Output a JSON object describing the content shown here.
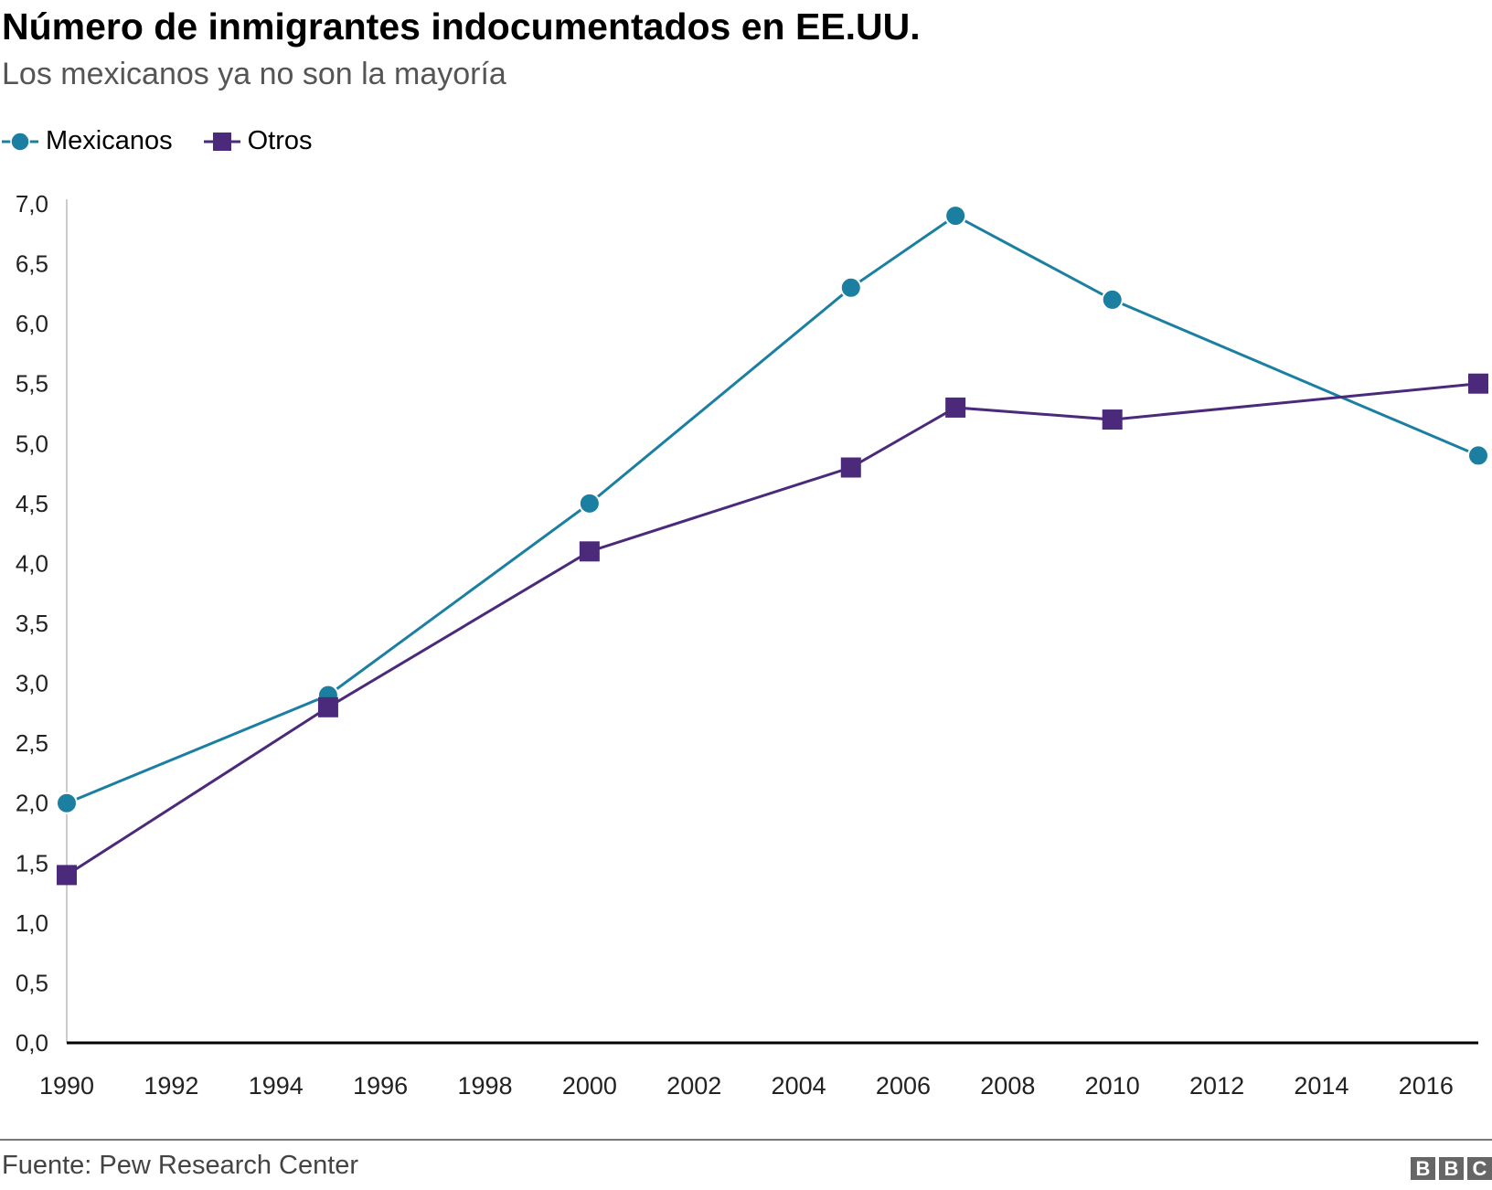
{
  "chart_data": {
    "type": "line",
    "title": "Número de inmigrantes indocumentados en EE.UU.",
    "subtitle": "Los mexicanos ya no son la mayoría",
    "x": [
      1990,
      1995,
      2000,
      2005,
      2007,
      2010,
      2017
    ],
    "xlim": [
      1990,
      2017
    ],
    "ylim": [
      0,
      7
    ],
    "x_ticks": [
      "1990",
      "1992",
      "1994",
      "1996",
      "1998",
      "2000",
      "2002",
      "2004",
      "2006",
      "2008",
      "2010",
      "2012",
      "2014",
      "2016"
    ],
    "y_ticks": [
      "0,0",
      "0,5",
      "1,0",
      "1,5",
      "2,0",
      "2,5",
      "3,0",
      "3,5",
      "4,0",
      "4,5",
      "5,0",
      "5,5",
      "6,0",
      "6,5",
      "7,0"
    ],
    "grid": false,
    "legend_placement": "top-left",
    "series": [
      {
        "name": "Mexicanos",
        "color": "#1a7fa0",
        "marker": "circle",
        "values": [
          2.0,
          2.9,
          4.5,
          6.3,
          6.9,
          6.2,
          4.9
        ]
      },
      {
        "name": "Otros",
        "color": "#4b2a7b",
        "marker": "square",
        "values": [
          1.4,
          2.8,
          4.1,
          4.8,
          5.3,
          5.2,
          5.5
        ]
      }
    ]
  },
  "footer": {
    "source": "Fuente: Pew Research Center",
    "logo": "BBC"
  }
}
